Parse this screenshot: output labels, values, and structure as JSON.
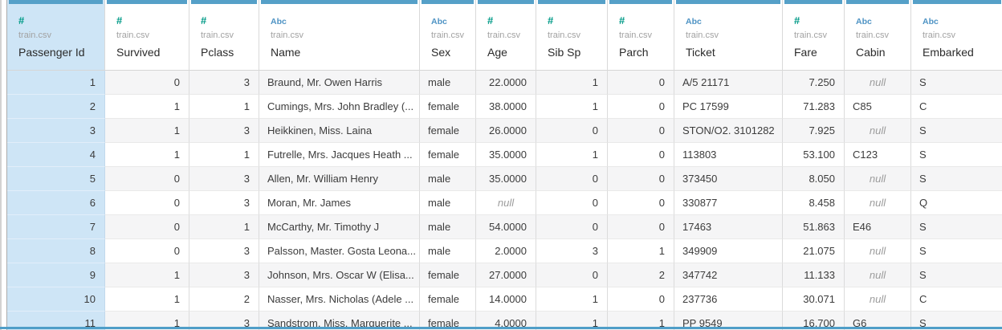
{
  "grid_title": "data-source-preview",
  "source_file": "train.csv",
  "null_label": "null",
  "colors": {
    "accent_bar": "#55a0c8",
    "selected_column_bg": "#cee5f6",
    "number_type_icon": "#009a87",
    "string_type_icon": "#4e93c4",
    "row_stripe": "#f5f5f6",
    "bottom_scrollbar": "#4f9ec8"
  },
  "columns": [
    {
      "field": "Passenger Id",
      "source": "train.csv",
      "type": "number",
      "glyph": "#",
      "align": "right",
      "selected": true
    },
    {
      "field": "Survived",
      "source": "train.csv",
      "type": "number",
      "glyph": "#",
      "align": "right",
      "selected": false
    },
    {
      "field": "Pclass",
      "source": "train.csv",
      "type": "number",
      "glyph": "#",
      "align": "right",
      "selected": false
    },
    {
      "field": "Name",
      "source": "train.csv",
      "type": "string",
      "glyph": "Abc",
      "align": "left",
      "selected": false
    },
    {
      "field": "Sex",
      "source": "train.csv",
      "type": "string",
      "glyph": "Abc",
      "align": "left",
      "selected": false
    },
    {
      "field": "Age",
      "source": "train.csv",
      "type": "number",
      "glyph": "#",
      "align": "right",
      "selected": false
    },
    {
      "field": "Sib Sp",
      "source": "train.csv",
      "type": "number",
      "glyph": "#",
      "align": "right",
      "selected": false
    },
    {
      "field": "Parch",
      "source": "train.csv",
      "type": "number",
      "glyph": "#",
      "align": "right",
      "selected": false
    },
    {
      "field": "Ticket",
      "source": "train.csv",
      "type": "string",
      "glyph": "Abc",
      "align": "left",
      "selected": false
    },
    {
      "field": "Fare",
      "source": "train.csv",
      "type": "number",
      "glyph": "#",
      "align": "right",
      "selected": false
    },
    {
      "field": "Cabin",
      "source": "train.csv",
      "type": "string",
      "glyph": "Abc",
      "align": "left",
      "selected": false
    },
    {
      "field": "Embarked",
      "source": "train.csv",
      "type": "string",
      "glyph": "Abc",
      "align": "left",
      "selected": false
    }
  ],
  "rows": [
    [
      "1",
      "0",
      "3",
      "Braund, Mr. Owen Harris",
      "male",
      "22.0000",
      "1",
      "0",
      "A/5 21171",
      "7.250",
      null,
      "S"
    ],
    [
      "2",
      "1",
      "1",
      "Cumings, Mrs. John Bradley (...",
      "female",
      "38.0000",
      "1",
      "0",
      "PC 17599",
      "71.283",
      "C85",
      "C"
    ],
    [
      "3",
      "1",
      "3",
      "Heikkinen, Miss. Laina",
      "female",
      "26.0000",
      "0",
      "0",
      "STON/O2. 3101282",
      "7.925",
      null,
      "S"
    ],
    [
      "4",
      "1",
      "1",
      "Futrelle, Mrs. Jacques Heath ...",
      "female",
      "35.0000",
      "1",
      "0",
      "113803",
      "53.100",
      "C123",
      "S"
    ],
    [
      "5",
      "0",
      "3",
      "Allen, Mr. William Henry",
      "male",
      "35.0000",
      "0",
      "0",
      "373450",
      "8.050",
      null,
      "S"
    ],
    [
      "6",
      "0",
      "3",
      "Moran, Mr. James",
      "male",
      null,
      "0",
      "0",
      "330877",
      "8.458",
      null,
      "Q"
    ],
    [
      "7",
      "0",
      "1",
      "McCarthy, Mr. Timothy J",
      "male",
      "54.0000",
      "0",
      "0",
      "17463",
      "51.863",
      "E46",
      "S"
    ],
    [
      "8",
      "0",
      "3",
      "Palsson, Master. Gosta Leona...",
      "male",
      "2.0000",
      "3",
      "1",
      "349909",
      "21.075",
      null,
      "S"
    ],
    [
      "9",
      "1",
      "3",
      "Johnson, Mrs. Oscar W (Elisa...",
      "female",
      "27.0000",
      "0",
      "2",
      "347742",
      "11.133",
      null,
      "S"
    ],
    [
      "10",
      "1",
      "2",
      "Nasser, Mrs. Nicholas (Adele ...",
      "female",
      "14.0000",
      "1",
      "0",
      "237736",
      "30.071",
      null,
      "C"
    ],
    [
      "11",
      "1",
      "3",
      "Sandstrom, Miss. Marguerite ...",
      "female",
      "4.0000",
      "1",
      "1",
      "PP 9549",
      "16.700",
      "G6",
      "S"
    ]
  ]
}
